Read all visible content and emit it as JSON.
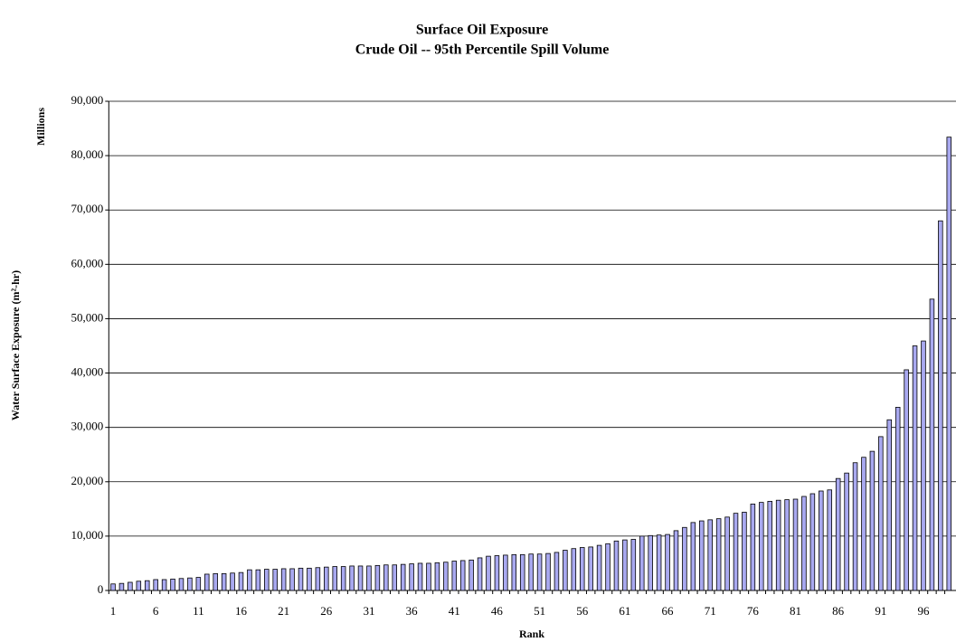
{
  "chart_data": {
    "type": "bar",
    "title": "Surface Oil Exposure",
    "subtitle": "Crude Oil -- 95th Percentile Spill Volume",
    "y_label": "Water Surface Exposure (m²-hr)",
    "y_unit": "Millions",
    "x_label": "Rank",
    "color": "#a9a9f0",
    "grid": true,
    "categories": [
      1,
      null,
      null,
      null,
      null,
      6,
      null,
      null,
      null,
      null,
      11,
      null,
      null,
      null,
      null,
      16,
      null,
      null,
      null,
      null,
      21,
      null,
      null,
      null,
      null,
      26,
      null,
      null,
      null,
      null,
      31,
      null,
      null,
      null,
      null,
      36,
      null,
      null,
      null,
      null,
      41,
      null,
      null,
      null,
      null,
      46,
      null,
      null,
      null,
      null,
      51,
      null,
      null,
      null,
      null,
      56,
      null,
      null,
      null,
      null,
      61,
      null,
      null,
      null,
      null,
      66,
      null,
      null,
      null,
      null,
      71,
      null,
      null,
      null,
      null,
      76,
      null,
      null,
      null,
      null,
      81,
      null,
      null,
      null,
      null,
      86,
      null,
      null,
      null,
      null,
      91,
      null,
      null,
      null,
      null,
      96,
      null,
      null,
      null
    ],
    "values": [
      1200,
      1300,
      1500,
      1700,
      1800,
      2000,
      2000,
      2100,
      2200,
      2300,
      2400,
      3000,
      3100,
      3100,
      3200,
      3300,
      3800,
      3800,
      3900,
      3900,
      4000,
      4000,
      4100,
      4100,
      4200,
      4300,
      4400,
      4400,
      4500,
      4500,
      4500,
      4600,
      4700,
      4700,
      4800,
      4900,
      5000,
      5000,
      5100,
      5200,
      5400,
      5500,
      5600,
      6000,
      6300,
      6400,
      6500,
      6600,
      6600,
      6700,
      6700,
      6800,
      7000,
      7400,
      7700,
      7900,
      8000,
      8300,
      8600,
      9100,
      9300,
      9400,
      10000,
      10100,
      10200,
      10300,
      11000,
      11600,
      12500,
      12800,
      13000,
      13200,
      13500,
      14200,
      14400,
      15900,
      16200,
      16400,
      16600,
      16700,
      16800,
      17300,
      17800,
      18300,
      18500,
      20600,
      21600,
      23500,
      24500,
      25600,
      28300,
      31400,
      33700,
      40600,
      45000,
      45900,
      53600,
      68000,
      83400
    ],
    "ylim": [
      0,
      90000
    ],
    "yticks": [
      0,
      {
        "value": 10000,
        "label": "10,000"
      },
      {
        "value": 20000,
        "label": "20,000"
      },
      {
        "value": 30000,
        "label": "30,000"
      },
      {
        "value": 40000,
        "label": "40,000"
      },
      {
        "value": 50000,
        "label": "50,000"
      },
      {
        "value": 60000,
        "label": "60,000"
      },
      {
        "value": 70000,
        "label": "70,000"
      },
      {
        "value": 80000,
        "label": "80,000"
      },
      {
        "value": 90000,
        "label": "90,000"
      }
    ]
  }
}
